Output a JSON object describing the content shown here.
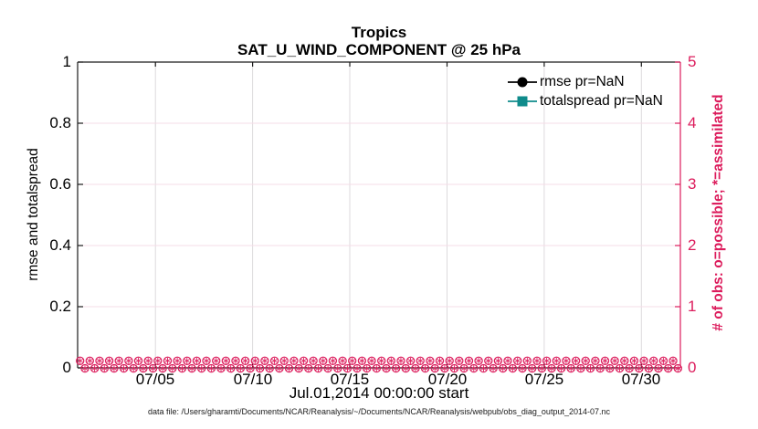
{
  "title": "Tropics",
  "subtitle": "SAT_U_WIND_COMPONENT @ 25 hPa",
  "axes": {
    "left": {
      "label": "rmse and totalspread",
      "ticks": [
        "0",
        "0.2",
        "0.4",
        "0.6",
        "0.8",
        "1"
      ],
      "color": "#000000"
    },
    "right": {
      "label": "# of obs: o=possible; *=assimilated",
      "ticks": [
        "0",
        "1",
        "2",
        "3",
        "4",
        "5"
      ],
      "color": "#DC1C5C"
    },
    "x": {
      "label": "Jul.01,2014 00:00:00 start",
      "ticks": [
        "07/05",
        "07/10",
        "07/15",
        "07/20",
        "07/25",
        "07/30"
      ]
    }
  },
  "legend": {
    "items": [
      {
        "label": "rmse pr=NaN",
        "color": "#000000",
        "marker": "circle"
      },
      {
        "label": "totalspread pr=NaN",
        "color": "#0F8B8B",
        "marker": "square"
      }
    ]
  },
  "caption": "data file: /Users/gharamti/Documents/NCAR/Reanalysis/~/Documents/NCAR/Reanalysis/webpub/obs_diag_output_2014-07.nc",
  "colors": {
    "obs_magenta": "#DC1C5C",
    "spread_teal": "#0F8B8B",
    "rmse_black": "#000000",
    "grid_vertical": "#dddadd",
    "grid_horizontal": "#f6dce7",
    "axis_black": "#1a1a1a"
  },
  "chart_data": {
    "type": "line",
    "title": "Tropics",
    "subtitle": "SAT_U_WIND_COMPONENT @ 25 hPa",
    "xlabel": "Jul.01,2014 00:00:00 start",
    "ylabel_left": "rmse and totalspread",
    "ylabel_right": "# of obs: o=possible; *=assimilated",
    "ylim_left": [
      0,
      1
    ],
    "ylim_right": [
      0,
      5
    ],
    "x_tick_labels": [
      "07/05",
      "07/10",
      "07/15",
      "07/20",
      "07/25",
      "07/30"
    ],
    "x_range": "2014-07-01 00:00 to 2014-08-01 00:00 (6-hourly bins)",
    "grid": true,
    "legend_position": "upper-right, no box",
    "series": [
      {
        "name": "rmse pr=NaN",
        "axis": "left",
        "values": "NaN (nothing plotted)"
      },
      {
        "name": "totalspread pr=NaN",
        "axis": "left",
        "values": "NaN (nothing plotted)"
      },
      {
        "name": "# obs possible (o markers)",
        "axis": "right",
        "n_points": 124,
        "constant_value": 0
      },
      {
        "name": "# obs assimilated (* markers)",
        "axis": "right",
        "n_points": 124,
        "constant_value": 0
      }
    ]
  }
}
